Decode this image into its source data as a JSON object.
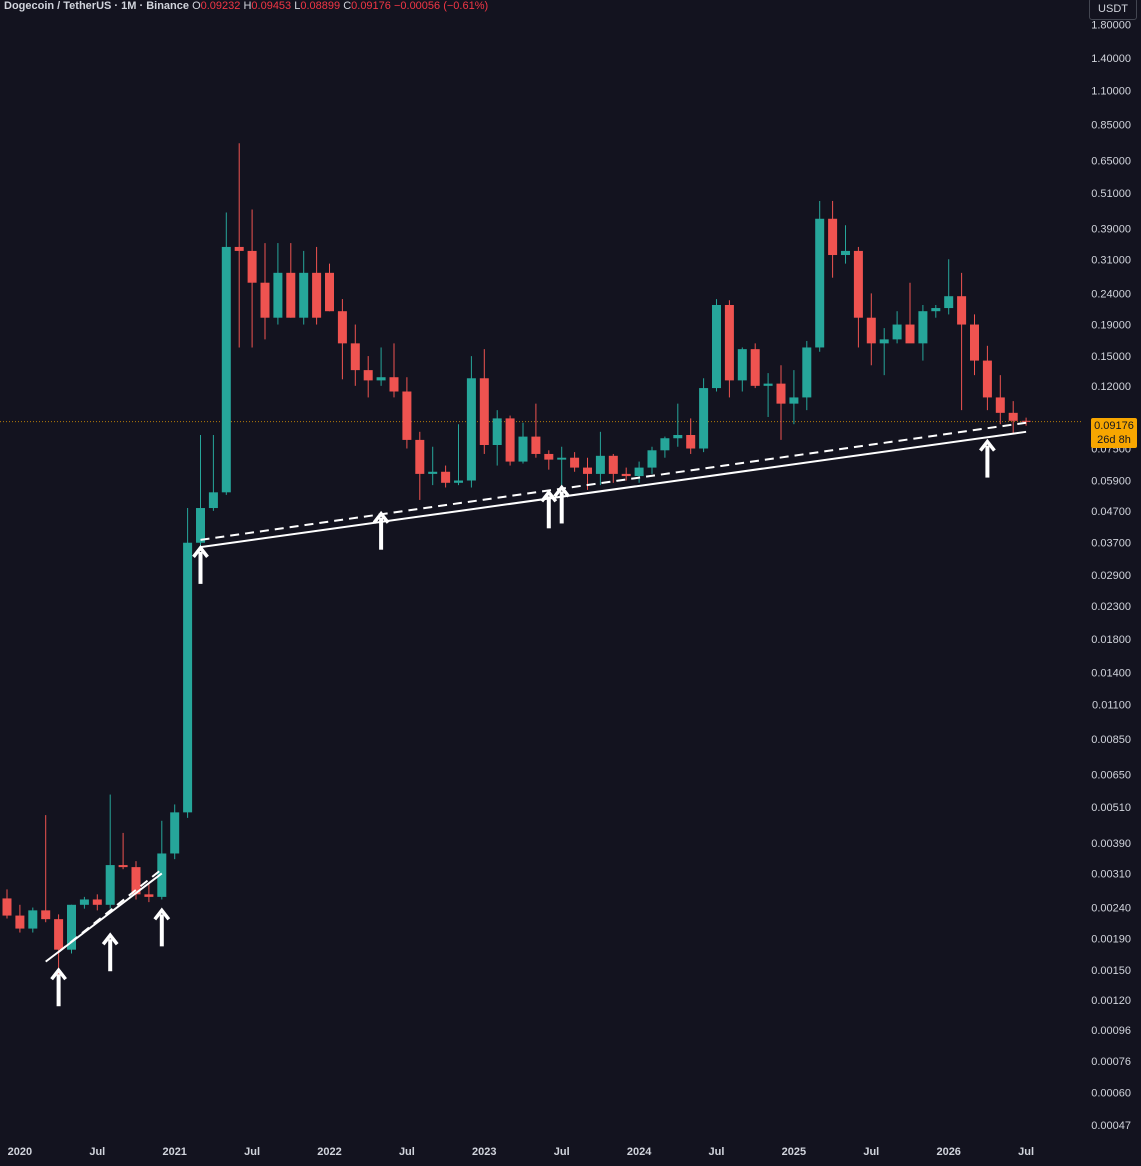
{
  "legend": {
    "symbol": "Dogecoin / TetherUS · 1M · Binance",
    "open_label": "O",
    "open": "0.09232",
    "high_label": "H",
    "high": "0.09453",
    "low_label": "L",
    "low": "0.08899",
    "close_label": "C",
    "close": "0.09176",
    "change": "−0.00056 (−0.61%)"
  },
  "currency": "USDT",
  "last_price": "0.09176",
  "countdown": "26d 8h",
  "colors": {
    "background": "#13131f",
    "up": "#26a69a",
    "down": "#ef5350",
    "axis_text": "#d1d4dc",
    "last_price": "#f7a600"
  },
  "chart_data": {
    "type": "candlestick",
    "y_scale": "log",
    "ylim": [
      0.00042,
      1.95
    ],
    "xlim": [
      "2019-12",
      "2026-07"
    ],
    "y_ticks": [
      "1.80000",
      "1.40000",
      "1.10000",
      "0.85000",
      "0.65000",
      "0.51000",
      "0.39000",
      "0.31000",
      "0.24000",
      "0.19000",
      "0.15000",
      "0.12000",
      "0.07500",
      "0.05900",
      "0.04700",
      "0.03700",
      "0.02900",
      "0.02300",
      "0.01800",
      "0.01400",
      "0.01100",
      "0.00850",
      "0.00650",
      "0.00510",
      "0.00390",
      "0.00310",
      "0.00240",
      "0.00190",
      "0.00150",
      "0.00120",
      "0.00096",
      "0.00076",
      "0.00060",
      "0.00047"
    ],
    "x_ticks": [
      {
        "label": "2020",
        "at": "2020-01"
      },
      {
        "label": "Jul",
        "at": "2020-07"
      },
      {
        "label": "2021",
        "at": "2021-01"
      },
      {
        "label": "Jul",
        "at": "2021-07"
      },
      {
        "label": "2022",
        "at": "2022-01"
      },
      {
        "label": "Jul",
        "at": "2022-07"
      },
      {
        "label": "2023",
        "at": "2023-01"
      },
      {
        "label": "Jul",
        "at": "2023-07"
      },
      {
        "label": "2024",
        "at": "2024-01"
      },
      {
        "label": "Jul",
        "at": "2024-07"
      },
      {
        "label": "2025",
        "at": "2025-01"
      },
      {
        "label": "Jul",
        "at": "2025-07"
      },
      {
        "label": "2026",
        "at": "2026-01"
      },
      {
        "label": "Jul",
        "at": "2026-07"
      }
    ],
    "candles": [
      {
        "t": "2019-12",
        "o": 0.00257,
        "h": 0.00275,
        "l": 0.00221,
        "c": 0.00226
      },
      {
        "t": "2020-01",
        "o": 0.00226,
        "h": 0.00245,
        "l": 0.00199,
        "c": 0.00205
      },
      {
        "t": "2020-02",
        "o": 0.00205,
        "h": 0.0024,
        "l": 0.00199,
        "c": 0.00235
      },
      {
        "t": "2020-03",
        "o": 0.00235,
        "h": 0.0048,
        "l": 0.00215,
        "c": 0.0022
      },
      {
        "t": "2020-04",
        "o": 0.0022,
        "h": 0.00228,
        "l": 0.00145,
        "c": 0.00175
      },
      {
        "t": "2020-05",
        "o": 0.00175,
        "h": 0.00245,
        "l": 0.0017,
        "c": 0.00245
      },
      {
        "t": "2020-06",
        "o": 0.00245,
        "h": 0.0026,
        "l": 0.00238,
        "c": 0.00255
      },
      {
        "t": "2020-07",
        "o": 0.00255,
        "h": 0.00265,
        "l": 0.00235,
        "c": 0.00245
      },
      {
        "t": "2020-08",
        "o": 0.00245,
        "h": 0.0056,
        "l": 0.00238,
        "c": 0.0033
      },
      {
        "t": "2020-09",
        "o": 0.0033,
        "h": 0.0042,
        "l": 0.0032,
        "c": 0.00325
      },
      {
        "t": "2020-10",
        "o": 0.00325,
        "h": 0.0034,
        "l": 0.00255,
        "c": 0.00265
      },
      {
        "t": "2020-11",
        "o": 0.00265,
        "h": 0.0029,
        "l": 0.0025,
        "c": 0.0026
      },
      {
        "t": "2020-12",
        "o": 0.0026,
        "h": 0.0046,
        "l": 0.00255,
        "c": 0.0036
      },
      {
        "t": "2021-01",
        "o": 0.0036,
        "h": 0.0052,
        "l": 0.00345,
        "c": 0.0049
      },
      {
        "t": "2021-02",
        "o": 0.0049,
        "h": 0.048,
        "l": 0.0047,
        "c": 0.037
      },
      {
        "t": "2021-03",
        "o": 0.037,
        "h": 0.083,
        "l": 0.035,
        "c": 0.048
      },
      {
        "t": "2021-04",
        "o": 0.048,
        "h": 0.083,
        "l": 0.047,
        "c": 0.054
      },
      {
        "t": "2021-05",
        "o": 0.054,
        "h": 0.44,
        "l": 0.053,
        "c": 0.34
      },
      {
        "t": "2021-06",
        "o": 0.34,
        "h": 0.74,
        "l": 0.16,
        "c": 0.33
      },
      {
        "t": "2021-07",
        "o": 0.33,
        "h": 0.45,
        "l": 0.16,
        "c": 0.26
      },
      {
        "t": "2021-08",
        "o": 0.26,
        "h": 0.35,
        "l": 0.17,
        "c": 0.2
      },
      {
        "t": "2021-09",
        "o": 0.2,
        "h": 0.35,
        "l": 0.19,
        "c": 0.28
      },
      {
        "t": "2021-10",
        "o": 0.28,
        "h": 0.35,
        "l": 0.2,
        "c": 0.2
      },
      {
        "t": "2021-11",
        "o": 0.2,
        "h": 0.33,
        "l": 0.19,
        "c": 0.28
      },
      {
        "t": "2021-12",
        "o": 0.28,
        "h": 0.34,
        "l": 0.19,
        "c": 0.2
      },
      {
        "t": "2022-01",
        "o": 0.28,
        "h": 0.3,
        "l": 0.21,
        "c": 0.21
      },
      {
        "t": "2022-02",
        "o": 0.21,
        "h": 0.23,
        "l": 0.126,
        "c": 0.165
      },
      {
        "t": "2022-03",
        "o": 0.165,
        "h": 0.19,
        "l": 0.12,
        "c": 0.135
      },
      {
        "t": "2022-04",
        "o": 0.135,
        "h": 0.15,
        "l": 0.11,
        "c": 0.125
      },
      {
        "t": "2022-05",
        "o": 0.125,
        "h": 0.16,
        "l": 0.12,
        "c": 0.128
      },
      {
        "t": "2022-06",
        "o": 0.128,
        "h": 0.165,
        "l": 0.11,
        "c": 0.115
      },
      {
        "t": "2022-07",
        "o": 0.115,
        "h": 0.128,
        "l": 0.075,
        "c": 0.08
      },
      {
        "t": "2022-08",
        "o": 0.08,
        "h": 0.085,
        "l": 0.051,
        "c": 0.062
      },
      {
        "t": "2022-09",
        "o": 0.062,
        "h": 0.076,
        "l": 0.057,
        "c": 0.063
      },
      {
        "t": "2022-10",
        "o": 0.063,
        "h": 0.066,
        "l": 0.056,
        "c": 0.058
      },
      {
        "t": "2022-11",
        "o": 0.058,
        "h": 0.09,
        "l": 0.057,
        "c": 0.059
      },
      {
        "t": "2022-12",
        "o": 0.059,
        "h": 0.15,
        "l": 0.056,
        "c": 0.127
      },
      {
        "t": "2023-01",
        "o": 0.127,
        "h": 0.158,
        "l": 0.072,
        "c": 0.077
      },
      {
        "t": "2023-02",
        "o": 0.077,
        "h": 0.1,
        "l": 0.066,
        "c": 0.094
      },
      {
        "t": "2023-03",
        "o": 0.094,
        "h": 0.096,
        "l": 0.066,
        "c": 0.068
      },
      {
        "t": "2023-04",
        "o": 0.068,
        "h": 0.091,
        "l": 0.067,
        "c": 0.082
      },
      {
        "t": "2023-05",
        "o": 0.082,
        "h": 0.105,
        "l": 0.07,
        "c": 0.072
      },
      {
        "t": "2023-06",
        "o": 0.072,
        "h": 0.074,
        "l": 0.064,
        "c": 0.069
      },
      {
        "t": "2023-07",
        "o": 0.069,
        "h": 0.076,
        "l": 0.056,
        "c": 0.07
      },
      {
        "t": "2023-08",
        "o": 0.07,
        "h": 0.073,
        "l": 0.063,
        "c": 0.065
      },
      {
        "t": "2023-09",
        "o": 0.065,
        "h": 0.07,
        "l": 0.055,
        "c": 0.062
      },
      {
        "t": "2023-10",
        "o": 0.062,
        "h": 0.085,
        "l": 0.057,
        "c": 0.071
      },
      {
        "t": "2023-11",
        "o": 0.071,
        "h": 0.072,
        "l": 0.058,
        "c": 0.062
      },
      {
        "t": "2023-12",
        "o": 0.062,
        "h": 0.065,
        "l": 0.059,
        "c": 0.061
      },
      {
        "t": "2024-01",
        "o": 0.061,
        "h": 0.068,
        "l": 0.058,
        "c": 0.065
      },
      {
        "t": "2024-02",
        "o": 0.065,
        "h": 0.076,
        "l": 0.062,
        "c": 0.074
      },
      {
        "t": "2024-03",
        "o": 0.074,
        "h": 0.082,
        "l": 0.07,
        "c": 0.081
      },
      {
        "t": "2024-04",
        "o": 0.081,
        "h": 0.105,
        "l": 0.076,
        "c": 0.083
      },
      {
        "t": "2024-05",
        "o": 0.083,
        "h": 0.094,
        "l": 0.072,
        "c": 0.075
      },
      {
        "t": "2024-06",
        "o": 0.075,
        "h": 0.127,
        "l": 0.073,
        "c": 0.118
      },
      {
        "t": "2024-07",
        "o": 0.118,
        "h": 0.23,
        "l": 0.115,
        "c": 0.22
      },
      {
        "t": "2024-08",
        "o": 0.22,
        "h": 0.228,
        "l": 0.11,
        "c": 0.125
      },
      {
        "t": "2024-09",
        "o": 0.125,
        "h": 0.16,
        "l": 0.115,
        "c": 0.158
      },
      {
        "t": "2024-10",
        "o": 0.158,
        "h": 0.165,
        "l": 0.118,
        "c": 0.12
      },
      {
        "t": "2024-11",
        "o": 0.12,
        "h": 0.132,
        "l": 0.095,
        "c": 0.122
      },
      {
        "t": "2024-12",
        "o": 0.122,
        "h": 0.14,
        "l": 0.08,
        "c": 0.105
      },
      {
        "t": "2025-01",
        "o": 0.105,
        "h": 0.135,
        "l": 0.09,
        "c": 0.11
      },
      {
        "t": "2025-02",
        "o": 0.11,
        "h": 0.168,
        "l": 0.1,
        "c": 0.16
      },
      {
        "t": "2025-03",
        "o": 0.16,
        "h": 0.48,
        "l": 0.155,
        "c": 0.42
      },
      {
        "t": "2025-04",
        "o": 0.42,
        "h": 0.48,
        "l": 0.27,
        "c": 0.32
      },
      {
        "t": "2025-05",
        "o": 0.32,
        "h": 0.4,
        "l": 0.3,
        "c": 0.33
      },
      {
        "t": "2025-06",
        "o": 0.33,
        "h": 0.34,
        "l": 0.16,
        "c": 0.2
      },
      {
        "t": "2025-07",
        "o": 0.2,
        "h": 0.24,
        "l": 0.14,
        "c": 0.165
      },
      {
        "t": "2025-08",
        "o": 0.165,
        "h": 0.185,
        "l": 0.13,
        "c": 0.17
      },
      {
        "t": "2025-09",
        "o": 0.17,
        "h": 0.21,
        "l": 0.165,
        "c": 0.19
      },
      {
        "t": "2025-10",
        "o": 0.19,
        "h": 0.26,
        "l": 0.17,
        "c": 0.165
      },
      {
        "t": "2025-11",
        "o": 0.165,
        "h": 0.22,
        "l": 0.145,
        "c": 0.21
      },
      {
        "t": "2025-12",
        "o": 0.21,
        "h": 0.22,
        "l": 0.2,
        "c": 0.215
      },
      {
        "t": "2026-01",
        "o": 0.215,
        "h": 0.31,
        "l": 0.205,
        "c": 0.235
      },
      {
        "t": "2026-02",
        "o": 0.235,
        "h": 0.28,
        "l": 0.1,
        "c": 0.19
      },
      {
        "t": "2026-03",
        "o": 0.19,
        "h": 0.205,
        "l": 0.13,
        "c": 0.145
      },
      {
        "t": "2026-04",
        "o": 0.145,
        "h": 0.162,
        "l": 0.1,
        "c": 0.11
      },
      {
        "t": "2026-05",
        "o": 0.11,
        "h": 0.13,
        "l": 0.09,
        "c": 0.098
      },
      {
        "t": "2026-06",
        "o": 0.098,
        "h": 0.107,
        "l": 0.084,
        "c": 0.09232
      },
      {
        "t": "2026-07",
        "o": 0.09232,
        "h": 0.09453,
        "l": 0.08899,
        "c": 0.09176
      }
    ],
    "trendlines": [
      {
        "style": "solid",
        "from": {
          "t": "2020-03",
          "p": 0.0016
        },
        "to": {
          "t": "2020-12",
          "p": 0.0031
        }
      },
      {
        "style": "dashed",
        "from": {
          "t": "2020-04",
          "p": 0.00172
        },
        "to": {
          "t": "2020-12",
          "p": 0.0032
        }
      },
      {
        "style": "solid",
        "from": {
          "t": "2021-03",
          "p": 0.0358
        },
        "to": {
          "t": "2026-07",
          "p": 0.085
        }
      },
      {
        "style": "dashed",
        "from": {
          "t": "2021-03",
          "p": 0.0378
        },
        "to": {
          "t": "2026-07",
          "p": 0.091
        }
      }
    ],
    "arrows": [
      {
        "t": "2020-04",
        "p": 0.0015
      },
      {
        "t": "2020-08",
        "p": 0.00195
      },
      {
        "t": "2020-12",
        "p": 0.00235
      },
      {
        "t": "2021-03",
        "p": 0.0356
      },
      {
        "t": "2022-05",
        "p": 0.046
      },
      {
        "t": "2023-06",
        "p": 0.054
      },
      {
        "t": "2023-07",
        "p": 0.056
      },
      {
        "t": "2026-04",
        "p": 0.079
      }
    ]
  }
}
